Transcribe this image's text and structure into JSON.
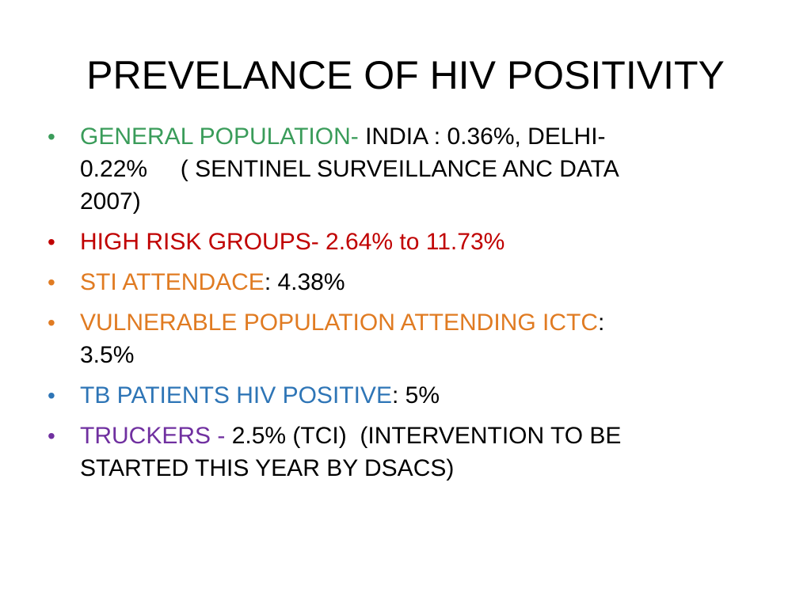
{
  "slide": {
    "title": "PREVELANCE OF HIV POSITIVITY",
    "bullets": [
      {
        "bullet_glyph": "•",
        "bullet_color": "#3a9c5a",
        "label": "GENERAL POPULATION-",
        "label_color": "#3a9c5a",
        "text": " INDIA : 0.36%, DELHI-",
        "text_line2": "0.22%     ( SENTINEL SURVEILLANCE ANC DATA",
        "text_line3": "2007)"
      },
      {
        "bullet_glyph": "•",
        "bullet_color": "#c00000",
        "text": "HIGH RISK GROUPS- 2.64% to 11.73%",
        "text_color": "#c00000"
      },
      {
        "bullet_glyph": "•",
        "bullet_color": "#e07b22",
        "label": "STI ATTENDACE",
        "label_color": "#e07b22",
        "text": ": 4.38%"
      },
      {
        "bullet_glyph": "•",
        "bullet_color": "#e07b22",
        "label": "VULNERABLE POPULATION ATTENDING ICTC",
        "label_color": "#e07b22",
        "text": ":",
        "text_line2": "3.5%"
      },
      {
        "bullet_glyph": "•",
        "bullet_color": "#2e75b6",
        "label": "TB PATIENTS HIV POSITIVE",
        "label_color": "#2e75b6",
        "text": ": 5%"
      },
      {
        "bullet_glyph": "•",
        "bullet_color": "#7030a0",
        "label": "TRUCKERS - ",
        "label_color": "#7030a0",
        "text": "2.5% (TCI)  (INTERVENTION TO BE",
        "text_line2": "STARTED THIS YEAR BY DSACS)"
      }
    ]
  }
}
